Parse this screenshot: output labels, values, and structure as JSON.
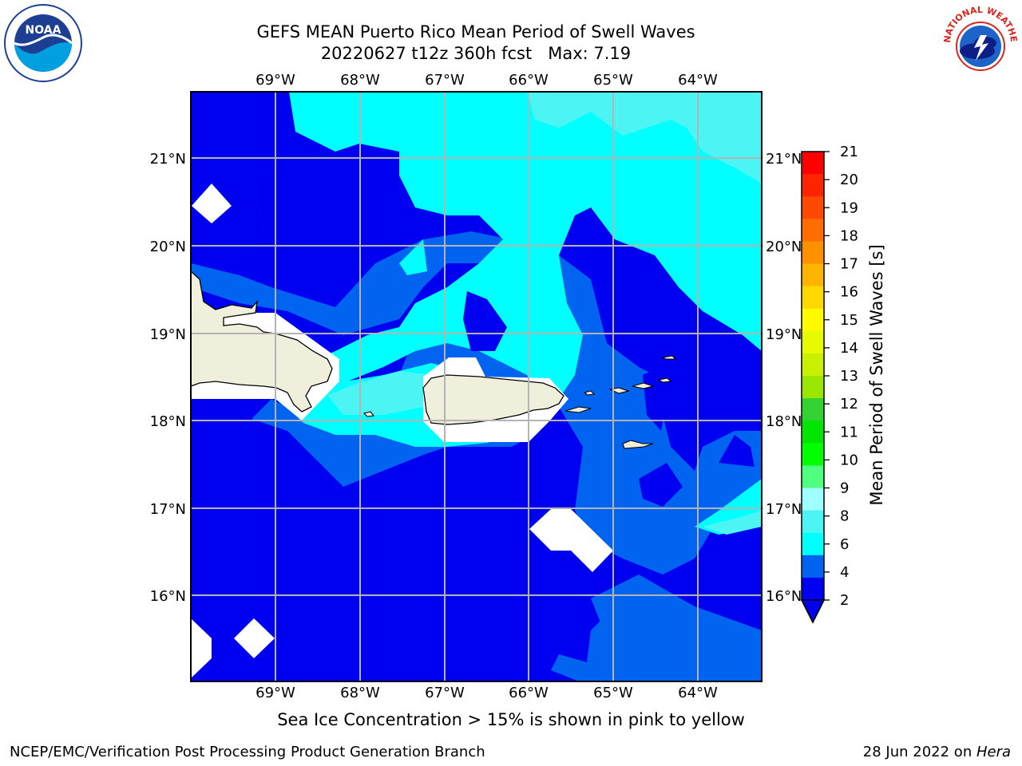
{
  "header": {
    "title_line1": "GEFS MEAN Puerto Rico Mean Period of Swell Waves",
    "title_line2": "20220627 t12z 360h fcst   Max: 7.19"
  },
  "logos": {
    "left": "NOAA",
    "right": "NATIONAL WEATHER SERVICE"
  },
  "map": {
    "lon_labels": [
      "69°W",
      "68°W",
      "67°W",
      "66°W",
      "65°W",
      "64°W"
    ],
    "lat_labels": [
      "21°N",
      "20°N",
      "19°N",
      "18°N",
      "17°N",
      "16°N"
    ],
    "colors": {
      "ocean_low": "#0000f0",
      "ocean_mid": "#0064f0",
      "ocean_high": "#00ffff",
      "ocean_highest": "#4cf4f4",
      "land": "#efefdc",
      "mask": "#ffffff",
      "grid": "#b4b4b4"
    }
  },
  "colorbar": {
    "label": "Mean Period of Swell Waves [s]",
    "ticks": [
      "21",
      "20",
      "19",
      "18",
      "17",
      "16",
      "15",
      "14",
      "13",
      "12",
      "11",
      "10",
      "9",
      "8",
      "6",
      "4",
      "2"
    ],
    "colors": [
      "#ff0000",
      "#ff2400",
      "#ff4800",
      "#ff6c00",
      "#ff9000",
      "#ffb400",
      "#ffd800",
      "#fffa00",
      "#e6fa00",
      "#c8f000",
      "#9be600",
      "#32d232",
      "#00e600",
      "#00ff00",
      "#50ff80",
      "#a0ffff",
      "#4cf4f4",
      "#00ffff",
      "#0064f0",
      "#0000f0"
    ]
  },
  "footer": {
    "sea_ice_note": "Sea Ice Concentration > 15% is shown in pink to yellow",
    "credit": "NCEP/EMC/Verification Post Processing Product Generation Branch",
    "date_prefix": "28 Jun 2022 on ",
    "machine": "Hera"
  }
}
